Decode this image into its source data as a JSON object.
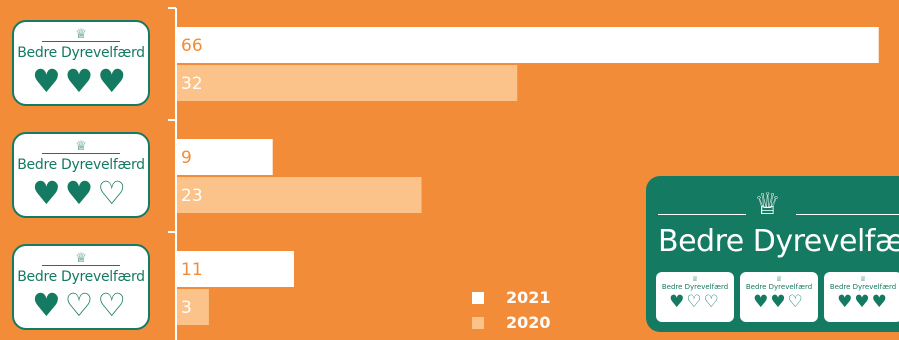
{
  "chart_data": {
    "type": "bar",
    "orientation": "horizontal",
    "categories": [
      "Bedre Dyrevelfærd (3 hjerter)",
      "Bedre Dyrevelfærd (2 hjerter)",
      "Bedre Dyrevelfærd (1 hjerte)"
    ],
    "series": [
      {
        "name": "2021",
        "values": [
          66,
          9,
          11
        ],
        "color": "#FFFFFF",
        "label_color": "#F28C38"
      },
      {
        "name": "2020",
        "values": [
          32,
          23,
          3
        ],
        "color": "#FBC38A",
        "label_color": "#FFFFFF"
      }
    ],
    "xlim": [
      0,
      68
    ],
    "legend_position": "bottom-center",
    "grid": false
  },
  "labels": [
    {
      "brand": "Bedre Dyrevelfærd",
      "hearts": "♥♥♥"
    },
    {
      "brand": "Bedre Dyrevelfærd",
      "hearts": "♥♥♡"
    },
    {
      "brand": "Bedre Dyrevelfærd",
      "hearts": "♥♡♡"
    }
  ],
  "big_logo": {
    "title": "Bedre Dyrevelfærd",
    "minis": [
      {
        "brand": "Bedre Dyrevelfærd",
        "hearts": "♥♡♡"
      },
      {
        "brand": "Bedre Dyrevelfærd",
        "hearts": "♥♥♡"
      },
      {
        "brand": "Bedre Dyrevelfærd",
        "hearts": "♥♥♥"
      }
    ]
  },
  "colors": {
    "background": "#F28C38",
    "brand_green": "#157A62"
  },
  "icons": {
    "crown": "crown-icon",
    "heart_filled": "heart-filled-icon",
    "heart_outline": "heart-outline-icon"
  }
}
